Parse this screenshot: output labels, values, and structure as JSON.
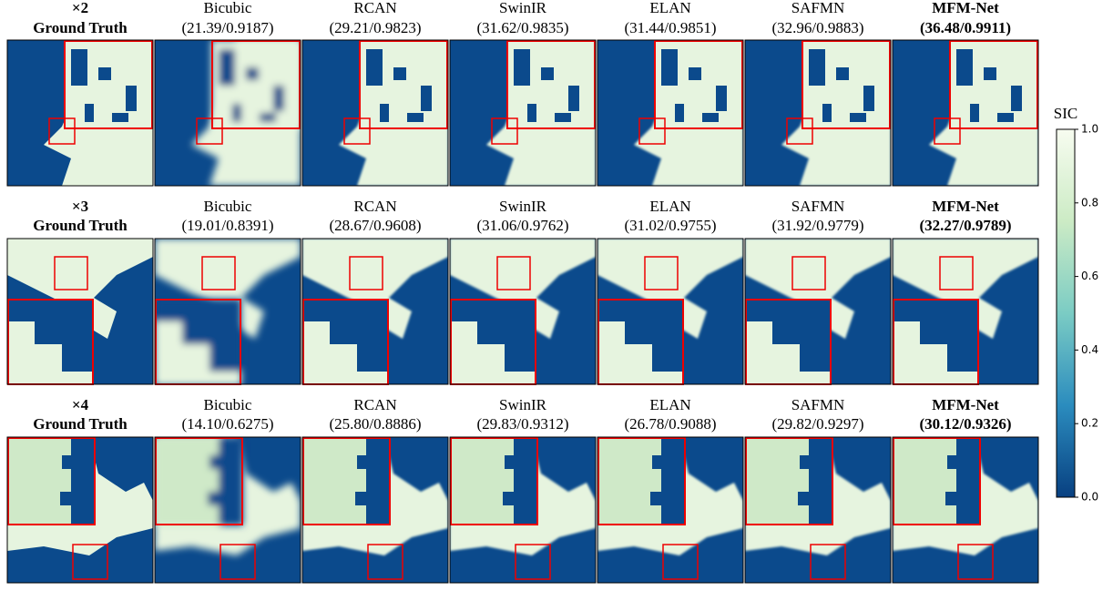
{
  "figure": {
    "rows": [
      {
        "scale": "×2",
        "columns": [
          {
            "name": "Ground Truth"
          },
          {
            "name": "Bicubic",
            "metrics": "(21.39/0.9187)"
          },
          {
            "name": "RCAN",
            "metrics": "(29.21/0.9823)"
          },
          {
            "name": "SwinIR",
            "metrics": "(31.62/0.9835)"
          },
          {
            "name": "ELAN",
            "metrics": "(31.44/0.9851)"
          },
          {
            "name": "SAFMN",
            "metrics": "(32.96/0.9883)"
          },
          {
            "name": "MFM-Net",
            "metrics": "(36.48/0.9911)"
          }
        ]
      },
      {
        "scale": "×3",
        "columns": [
          {
            "name": "Ground Truth"
          },
          {
            "name": "Bicubic",
            "metrics": "(19.01/0.8391)"
          },
          {
            "name": "RCAN",
            "metrics": "(28.67/0.9608)"
          },
          {
            "name": "SwinIR",
            "metrics": "(31.06/0.9762)"
          },
          {
            "name": "ELAN",
            "metrics": "(31.02/0.9755)"
          },
          {
            "name": "SAFMN",
            "metrics": "(31.92/0.9779)"
          },
          {
            "name": "MFM-Net",
            "metrics": "(32.27/0.9789)"
          }
        ]
      },
      {
        "scale": "×4",
        "columns": [
          {
            "name": "Ground Truth"
          },
          {
            "name": "Bicubic",
            "metrics": "(14.10/0.6275)"
          },
          {
            "name": "RCAN",
            "metrics": "(25.80/0.8886)"
          },
          {
            "name": "SwinIR",
            "metrics": "(29.83/0.9312)"
          },
          {
            "name": "ELAN",
            "metrics": "(26.78/0.9088)"
          },
          {
            "name": "SAFMN",
            "metrics": "(29.82/0.9297)"
          },
          {
            "name": "MFM-Net",
            "metrics": "(30.12/0.9326)"
          }
        ]
      }
    ],
    "colorbar": {
      "label": "SIC",
      "ticks": [
        {
          "value": 0,
          "label": "0.0"
        },
        0.2,
        0.4,
        0.6,
        0.8,
        {
          "value": 1,
          "label": "1.0"
        }
      ]
    }
  }
}
